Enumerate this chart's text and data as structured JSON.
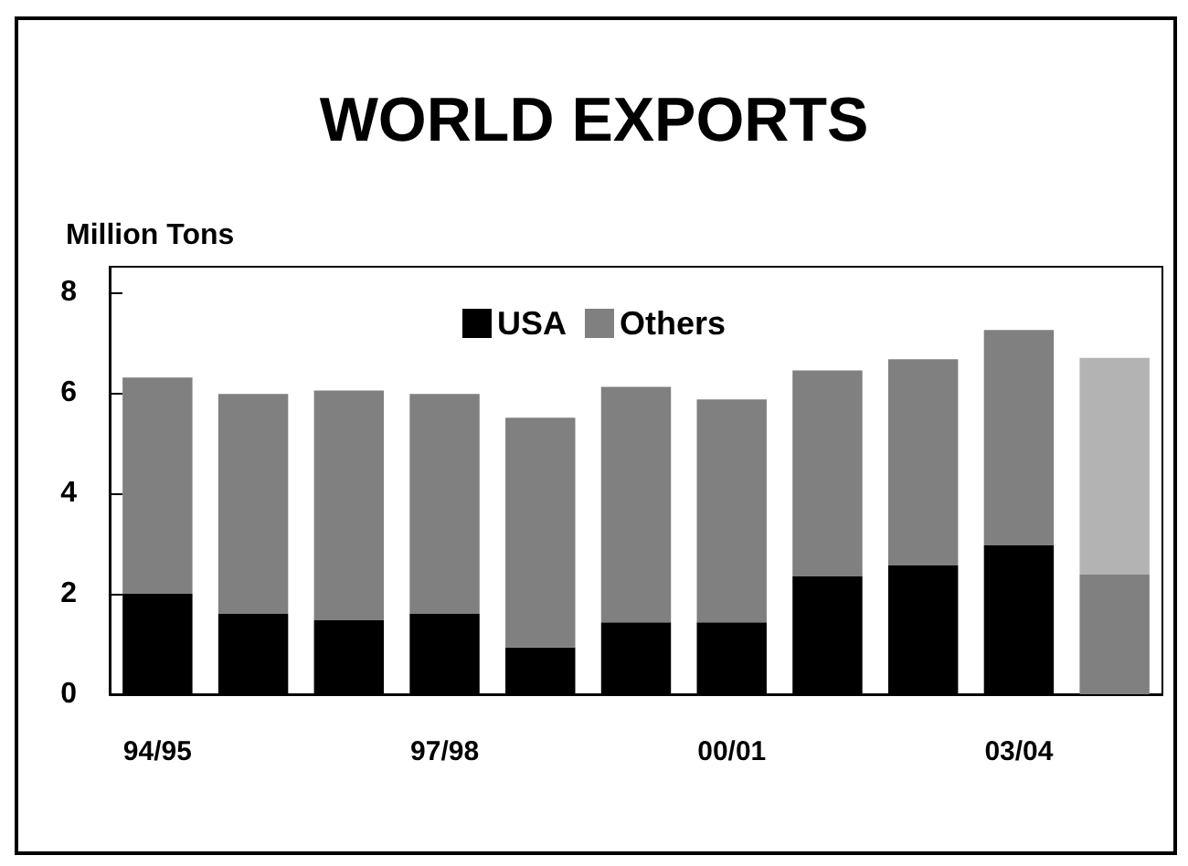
{
  "chart_data": {
    "type": "bar",
    "title": "WORLD EXPORTS",
    "ylabel": "Million Tons",
    "categories": [
      "94/95",
      null,
      null,
      "97/98",
      null,
      null,
      "00/01",
      null,
      null,
      "03/04",
      null
    ],
    "series": [
      {
        "name": "USA",
        "color": "#000000",
        "colors": [
          "#000000",
          "#000000",
          "#000000",
          "#000000",
          "#000000",
          "#000000",
          "#000000",
          "#000000",
          "#000000",
          "#000000",
          "#808080"
        ],
        "values": [
          2.0,
          1.6,
          1.47,
          1.6,
          0.93,
          1.43,
          1.43,
          2.35,
          2.56,
          2.96,
          2.38
        ]
      },
      {
        "name": "Others",
        "color": "#808080",
        "colors": [
          "#808080",
          "#808080",
          "#808080",
          "#808080",
          "#808080",
          "#808080",
          "#808080",
          "#808080",
          "#808080",
          "#808080",
          "#b3b3b3"
        ],
        "values": [
          4.3,
          4.37,
          4.57,
          4.37,
          4.57,
          4.68,
          4.43,
          4.09,
          4.1,
          4.28,
          4.31
        ]
      }
    ],
    "stacked": true,
    "ylim": [
      0,
      8.5
    ],
    "yticks": [
      0,
      2,
      4,
      6,
      8
    ],
    "legend": "top"
  }
}
